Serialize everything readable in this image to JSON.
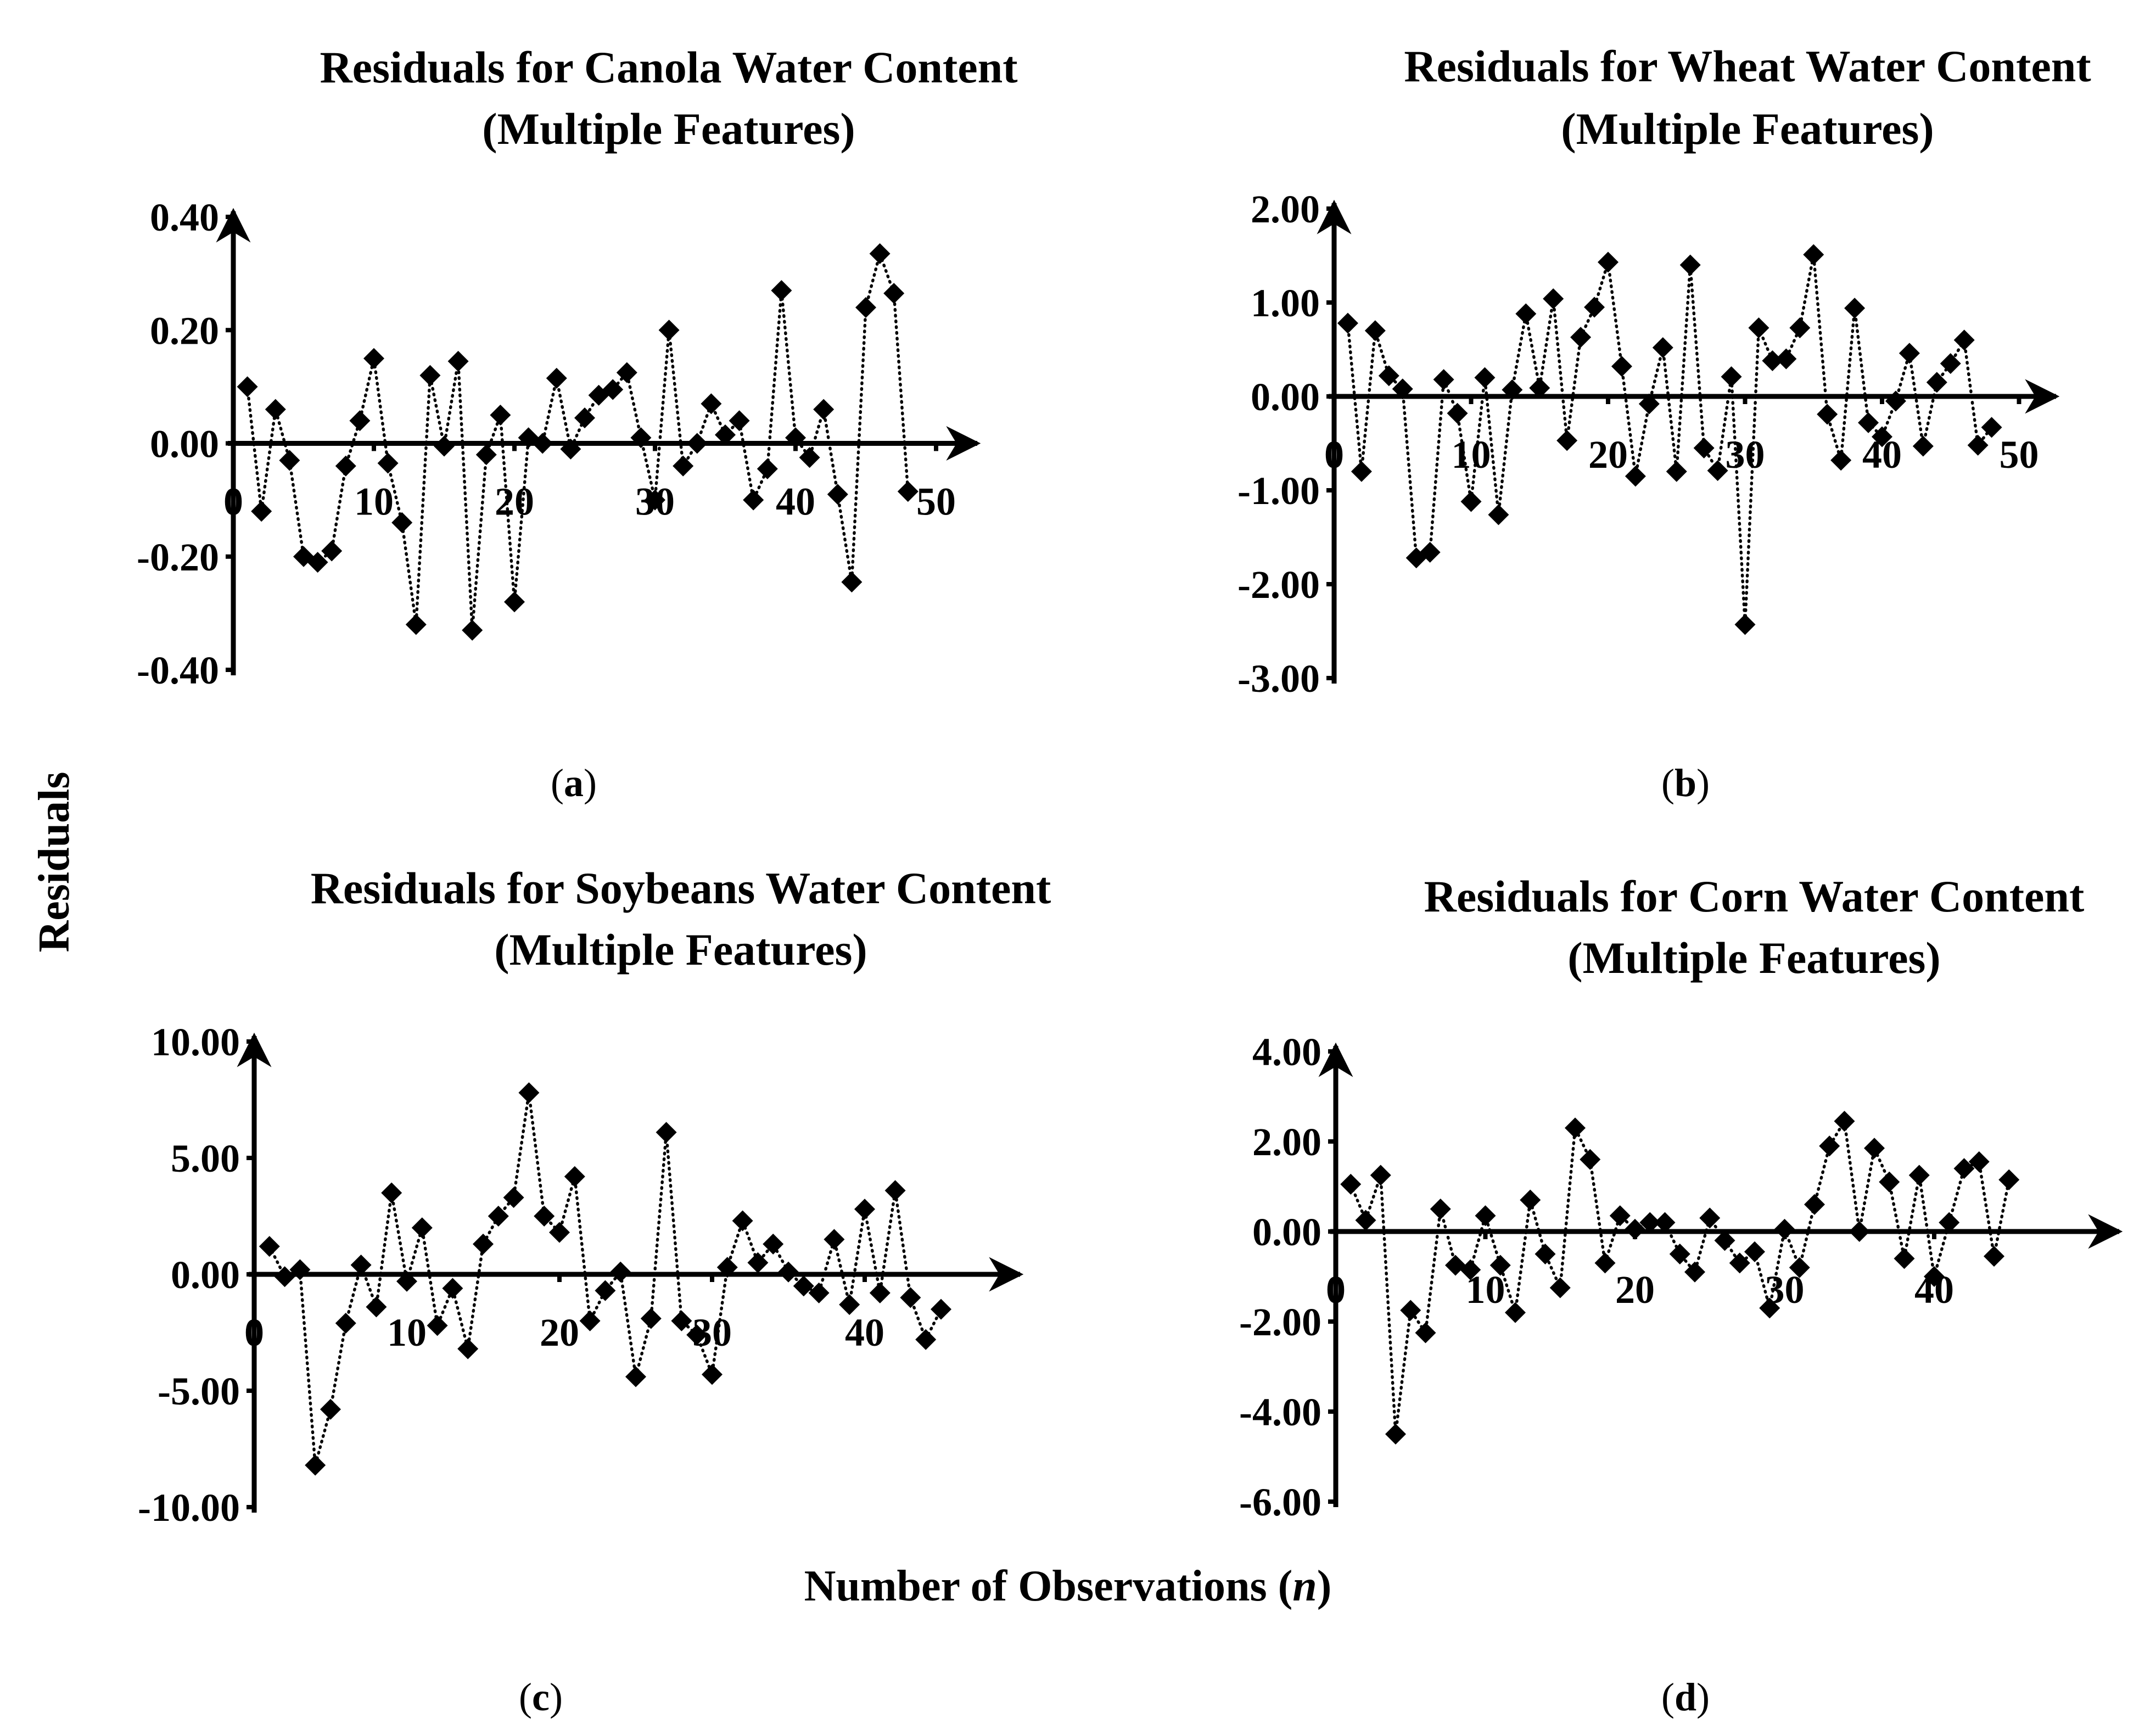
{
  "figure": {
    "shared_ylabel": "Residuals",
    "shared_xlabel_main": "Number of Observations (",
    "shared_xlabel_var": "n",
    "shared_xlabel_end": ")",
    "color": "#000000"
  },
  "chart_data": [
    {
      "id": "a",
      "panel_open": "(",
      "panel_letter": "a",
      "panel_close": ")",
      "type": "line",
      "marker": "diamond",
      "line_style": "dotted",
      "title": [
        "Residuals for Canola Water Content",
        "(Multiple Features)"
      ],
      "ylim": [
        -0.4,
        0.4
      ],
      "yticks": [
        0.4,
        0.2,
        0.0,
        -0.2,
        -0.4
      ],
      "ytick_labels": [
        "0.40",
        "0.20",
        "0.00",
        "-0.20",
        "-0.40"
      ],
      "xlim": [
        0,
        50
      ],
      "xticks": [
        0,
        10,
        20,
        30,
        40,
        50
      ],
      "xtick_labels": [
        "0",
        "10",
        "20",
        "30",
        "40",
        "50"
      ],
      "x": [
        1,
        2,
        3,
        4,
        5,
        6,
        7,
        8,
        9,
        10,
        11,
        12,
        13,
        14,
        15,
        16,
        17,
        18,
        19,
        20,
        21,
        22,
        23,
        24,
        25,
        26,
        27,
        28,
        29,
        30,
        31,
        32,
        33,
        34,
        35,
        36,
        37,
        38,
        39,
        40,
        41,
        42,
        43,
        44,
        45,
        46,
        47,
        48
      ],
      "y": [
        0.1,
        -0.12,
        0.06,
        -0.03,
        -0.2,
        -0.21,
        -0.19,
        -0.04,
        0.04,
        0.15,
        -0.035,
        -0.14,
        -0.32,
        0.12,
        -0.005,
        0.145,
        -0.33,
        -0.02,
        0.05,
        -0.28,
        0.01,
        0.0,
        0.115,
        -0.01,
        0.045,
        0.085,
        0.095,
        0.125,
        0.01,
        -0.1,
        0.2,
        -0.04,
        0.0,
        0.07,
        0.015,
        0.04,
        -0.1,
        -0.045,
        0.27,
        0.01,
        -0.025,
        0.06,
        -0.09,
        -0.245,
        0.24,
        0.335,
        0.265,
        -0.085
      ]
    },
    {
      "id": "b",
      "panel_open": "(",
      "panel_letter": "b",
      "panel_close": ")",
      "type": "line",
      "marker": "diamond",
      "line_style": "dotted",
      "title": [
        "Residuals for Wheat Water Content",
        "(Multiple Features)"
      ],
      "ylim": [
        -3.0,
        2.0
      ],
      "yticks": [
        2.0,
        1.0,
        0.0,
        -1.0,
        -2.0,
        -3.0
      ],
      "ytick_labels": [
        "2.00",
        "1.00",
        "0.00",
        "-1.00",
        "-2.00",
        "-3.00"
      ],
      "xlim": [
        0,
        50
      ],
      "xticks": [
        0,
        10,
        20,
        30,
        40,
        50
      ],
      "xtick_labels": [
        "0",
        "10",
        "20",
        "30",
        "40",
        "50"
      ],
      "x": [
        1,
        2,
        3,
        4,
        5,
        6,
        7,
        8,
        9,
        10,
        11,
        12,
        13,
        14,
        15,
        16,
        17,
        18,
        19,
        20,
        21,
        22,
        23,
        24,
        25,
        26,
        27,
        28,
        29,
        30,
        31,
        32,
        33,
        34,
        35,
        36,
        37,
        38,
        39,
        40,
        41,
        42,
        43,
        44,
        45,
        46,
        47,
        48
      ],
      "y": [
        0.78,
        -0.8,
        0.7,
        0.22,
        0.08,
        -1.72,
        -1.66,
        0.18,
        -0.18,
        -1.12,
        0.2,
        -1.26,
        0.07,
        0.88,
        0.09,
        1.04,
        -0.47,
        0.63,
        0.95,
        1.43,
        0.32,
        -0.85,
        -0.08,
        0.52,
        -0.8,
        1.4,
        -0.55,
        -0.79,
        0.21,
        -2.43,
        0.73,
        0.38,
        0.4,
        0.73,
        1.51,
        -0.19,
        -0.68,
        0.94,
        -0.28,
        -0.43,
        -0.05,
        0.46,
        -0.53,
        0.15,
        0.35,
        0.6,
        -0.52,
        -0.33
      ]
    },
    {
      "id": "c",
      "panel_open": "(",
      "panel_letter": "c",
      "panel_close": ")",
      "type": "line",
      "marker": "diamond",
      "line_style": "dotted",
      "title": [
        "Residuals for Soybeans Water Content",
        "(Multiple Features)"
      ],
      "ylim": [
        -10.0,
        10.0
      ],
      "yticks": [
        10.0,
        5.0,
        0.0,
        -5.0,
        -10.0
      ],
      "ytick_labels": [
        "10.00",
        "5.00",
        "0.00",
        "-5.00",
        "-10.00"
      ],
      "xlim": [
        0,
        50
      ],
      "xticks": [
        0,
        10,
        20,
        30,
        40
      ],
      "xtick_labels": [
        "0",
        "10",
        "20",
        "30",
        "40"
      ],
      "x": [
        1,
        2,
        3,
        4,
        5,
        6,
        7,
        8,
        9,
        10,
        11,
        12,
        13,
        14,
        15,
        16,
        17,
        18,
        19,
        20,
        21,
        22,
        23,
        24,
        25,
        26,
        27,
        28,
        29,
        30,
        31,
        32,
        33,
        34,
        35,
        36,
        37,
        38,
        39,
        40,
        41,
        42,
        43,
        44,
        45
      ],
      "y": [
        1.2,
        -0.1,
        0.2,
        -8.2,
        -5.8,
        -2.1,
        0.4,
        -1.4,
        3.5,
        -0.3,
        2.0,
        -2.2,
        -0.6,
        -3.2,
        1.3,
        2.5,
        3.3,
        7.8,
        2.5,
        1.8,
        4.2,
        -2.0,
        -0.7,
        0.1,
        -4.4,
        -1.9,
        6.1,
        -2.0,
        -2.6,
        -4.3,
        0.3,
        2.3,
        0.5,
        1.3,
        0.1,
        -0.5,
        -0.8,
        1.5,
        -1.3,
        2.8,
        -0.8,
        3.6,
        -1.0,
        -2.8,
        -1.5
      ]
    },
    {
      "id": "d",
      "panel_open": "(",
      "panel_letter": "d",
      "panel_close": ")",
      "type": "line",
      "marker": "diamond",
      "line_style": "dotted",
      "title": [
        "Residuals for Corn Water Content",
        "(Multiple Features)"
      ],
      "ylim": [
        -6.0,
        4.0
      ],
      "yticks": [
        4.0,
        2.0,
        0.0,
        -2.0,
        -4.0,
        -6.0
      ],
      "ytick_labels": [
        "4.00",
        "2.00",
        "0.00",
        "-2.00",
        "-4.00",
        "-6.00"
      ],
      "xlim": [
        0,
        50
      ],
      "xticks": [
        0,
        10,
        20,
        30,
        40
      ],
      "xtick_labels": [
        "0",
        "10",
        "20",
        "30",
        "40"
      ],
      "x": [
        1,
        2,
        3,
        4,
        5,
        6,
        7,
        8,
        9,
        10,
        11,
        12,
        13,
        14,
        15,
        16,
        17,
        18,
        19,
        20,
        21,
        22,
        23,
        24,
        25,
        26,
        27,
        28,
        29,
        30,
        31,
        32,
        33,
        34,
        35,
        36,
        37,
        38,
        39,
        40,
        41,
        42,
        43,
        44,
        45
      ],
      "y": [
        1.05,
        0.25,
        1.25,
        -4.5,
        -1.75,
        -2.25,
        0.5,
        -0.75,
        -0.85,
        0.35,
        -0.75,
        -1.8,
        0.7,
        -0.5,
        -1.25,
        2.3,
        1.6,
        -0.7,
        0.35,
        0.05,
        0.2,
        0.2,
        -0.5,
        -0.9,
        0.3,
        -0.2,
        -0.7,
        -0.45,
        -1.7,
        0.05,
        -0.8,
        0.6,
        1.9,
        2.45,
        0.0,
        1.85,
        1.1,
        -0.6,
        1.25,
        -1.0,
        0.2,
        1.4,
        1.55,
        -0.55,
        1.15
      ]
    }
  ]
}
